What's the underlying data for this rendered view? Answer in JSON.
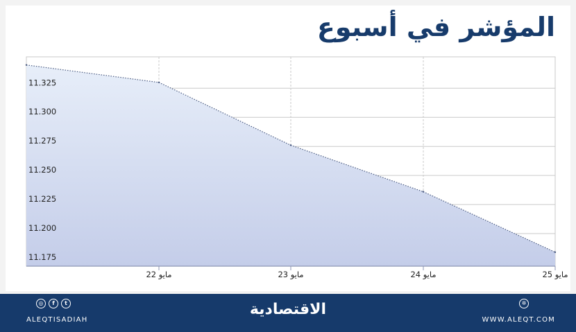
{
  "header": {
    "title": "المؤشر في أسبوع"
  },
  "chart_data": {
    "type": "area",
    "title": "المؤشر في أسبوع",
    "x": [
      "",
      "22 مايو",
      "23 مايو",
      "24 مايو",
      "25 مايو"
    ],
    "values": [
      11.345,
      11.33,
      11.276,
      11.236,
      11.184
    ],
    "yticks": [
      "11.175",
      "11.200",
      "11.225",
      "11.250",
      "11.275",
      "11.300",
      "11.325"
    ],
    "ylim": [
      11.172,
      11.352
    ],
    "grid": true,
    "colors": {
      "fill_top": "#e7eef9",
      "fill_bottom": "#c4cde9",
      "line": "#4a5a80",
      "grid": "#c9c9c9"
    }
  },
  "footer": {
    "brand": "الاقتصادية",
    "handle": "ALEQTISADIAH",
    "website": "WWW.ALEQT.COM",
    "social_icons": [
      "instagram-icon",
      "facebook-icon",
      "twitter-icon"
    ],
    "site_icon": "globe-icon",
    "colors": {
      "background": "#163a6b"
    }
  }
}
